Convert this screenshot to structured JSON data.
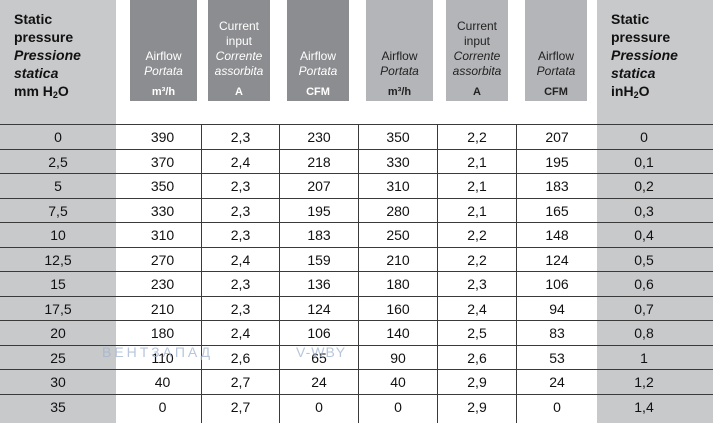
{
  "header": {
    "left": {
      "l1": "Static",
      "l2": "pressure",
      "l3": "Pressione",
      "l4": "statica",
      "l5": "mm H",
      "l5sub": "2",
      "l5end": "O"
    },
    "right": {
      "l1": "Static",
      "l2": "pressure",
      "l3": "Pressione",
      "l4": "statica",
      "l5": "inH",
      "l5sub": "2",
      "l5end": "O"
    },
    "columns": [
      {
        "l1": "Airflow",
        "l2": "Portata",
        "unit": "m³/h"
      },
      {
        "l1": "Current",
        "l1b": "input",
        "l2": "Corrente",
        "l2b": "assorbita",
        "unit": "A"
      },
      {
        "l1": "Airflow",
        "l2": "Portata",
        "unit": "CFM"
      },
      {
        "l1": "Airflow",
        "l2": "Portata",
        "unit": "m³/h"
      },
      {
        "l1": "Current",
        "l1b": "input",
        "l2": "Corrente",
        "l2b": "assorbita",
        "unit": "A"
      },
      {
        "l1": "Airflow",
        "l2": "Portata",
        "unit": "CFM"
      }
    ]
  },
  "rows": [
    [
      "0",
      "390",
      "2,3",
      "230",
      "350",
      "2,2",
      "207",
      "0"
    ],
    [
      "2,5",
      "370",
      "2,4",
      "218",
      "330",
      "2,1",
      "195",
      "0,1"
    ],
    [
      "5",
      "350",
      "2,3",
      "207",
      "310",
      "2,1",
      "183",
      "0,2"
    ],
    [
      "7,5",
      "330",
      "2,3",
      "195",
      "280",
      "2,1",
      "165",
      "0,3"
    ],
    [
      "10",
      "310",
      "2,3",
      "183",
      "250",
      "2,2",
      "148",
      "0,4"
    ],
    [
      "12,5",
      "270",
      "2,4",
      "159",
      "210",
      "2,2",
      "124",
      "0,5"
    ],
    [
      "15",
      "230",
      "2,3",
      "136",
      "180",
      "2,3",
      "106",
      "0,6"
    ],
    [
      "17,5",
      "210",
      "2,3",
      "124",
      "160",
      "2,4",
      "94",
      "0,7"
    ],
    [
      "20",
      "180",
      "2,4",
      "106",
      "140",
      "2,5",
      "83",
      "0,8"
    ],
    [
      "25",
      "110",
      "2,6",
      "65",
      "90",
      "2,6",
      "53",
      "1"
    ],
    [
      "30",
      "40",
      "2,7",
      "24",
      "40",
      "2,9",
      "24",
      "1,2"
    ],
    [
      "35",
      "0",
      "2,7",
      "0",
      "0",
      "2,9",
      "0",
      "1,4"
    ]
  ],
  "watermark": {
    "text1": "ВЕНТЗАПАД",
    "text2": "V-WBY"
  },
  "colors": {
    "side": "#c8c9cb",
    "dark": "#8c8d90",
    "light": "#b4b5b8",
    "line": "#3a3a3a"
  }
}
